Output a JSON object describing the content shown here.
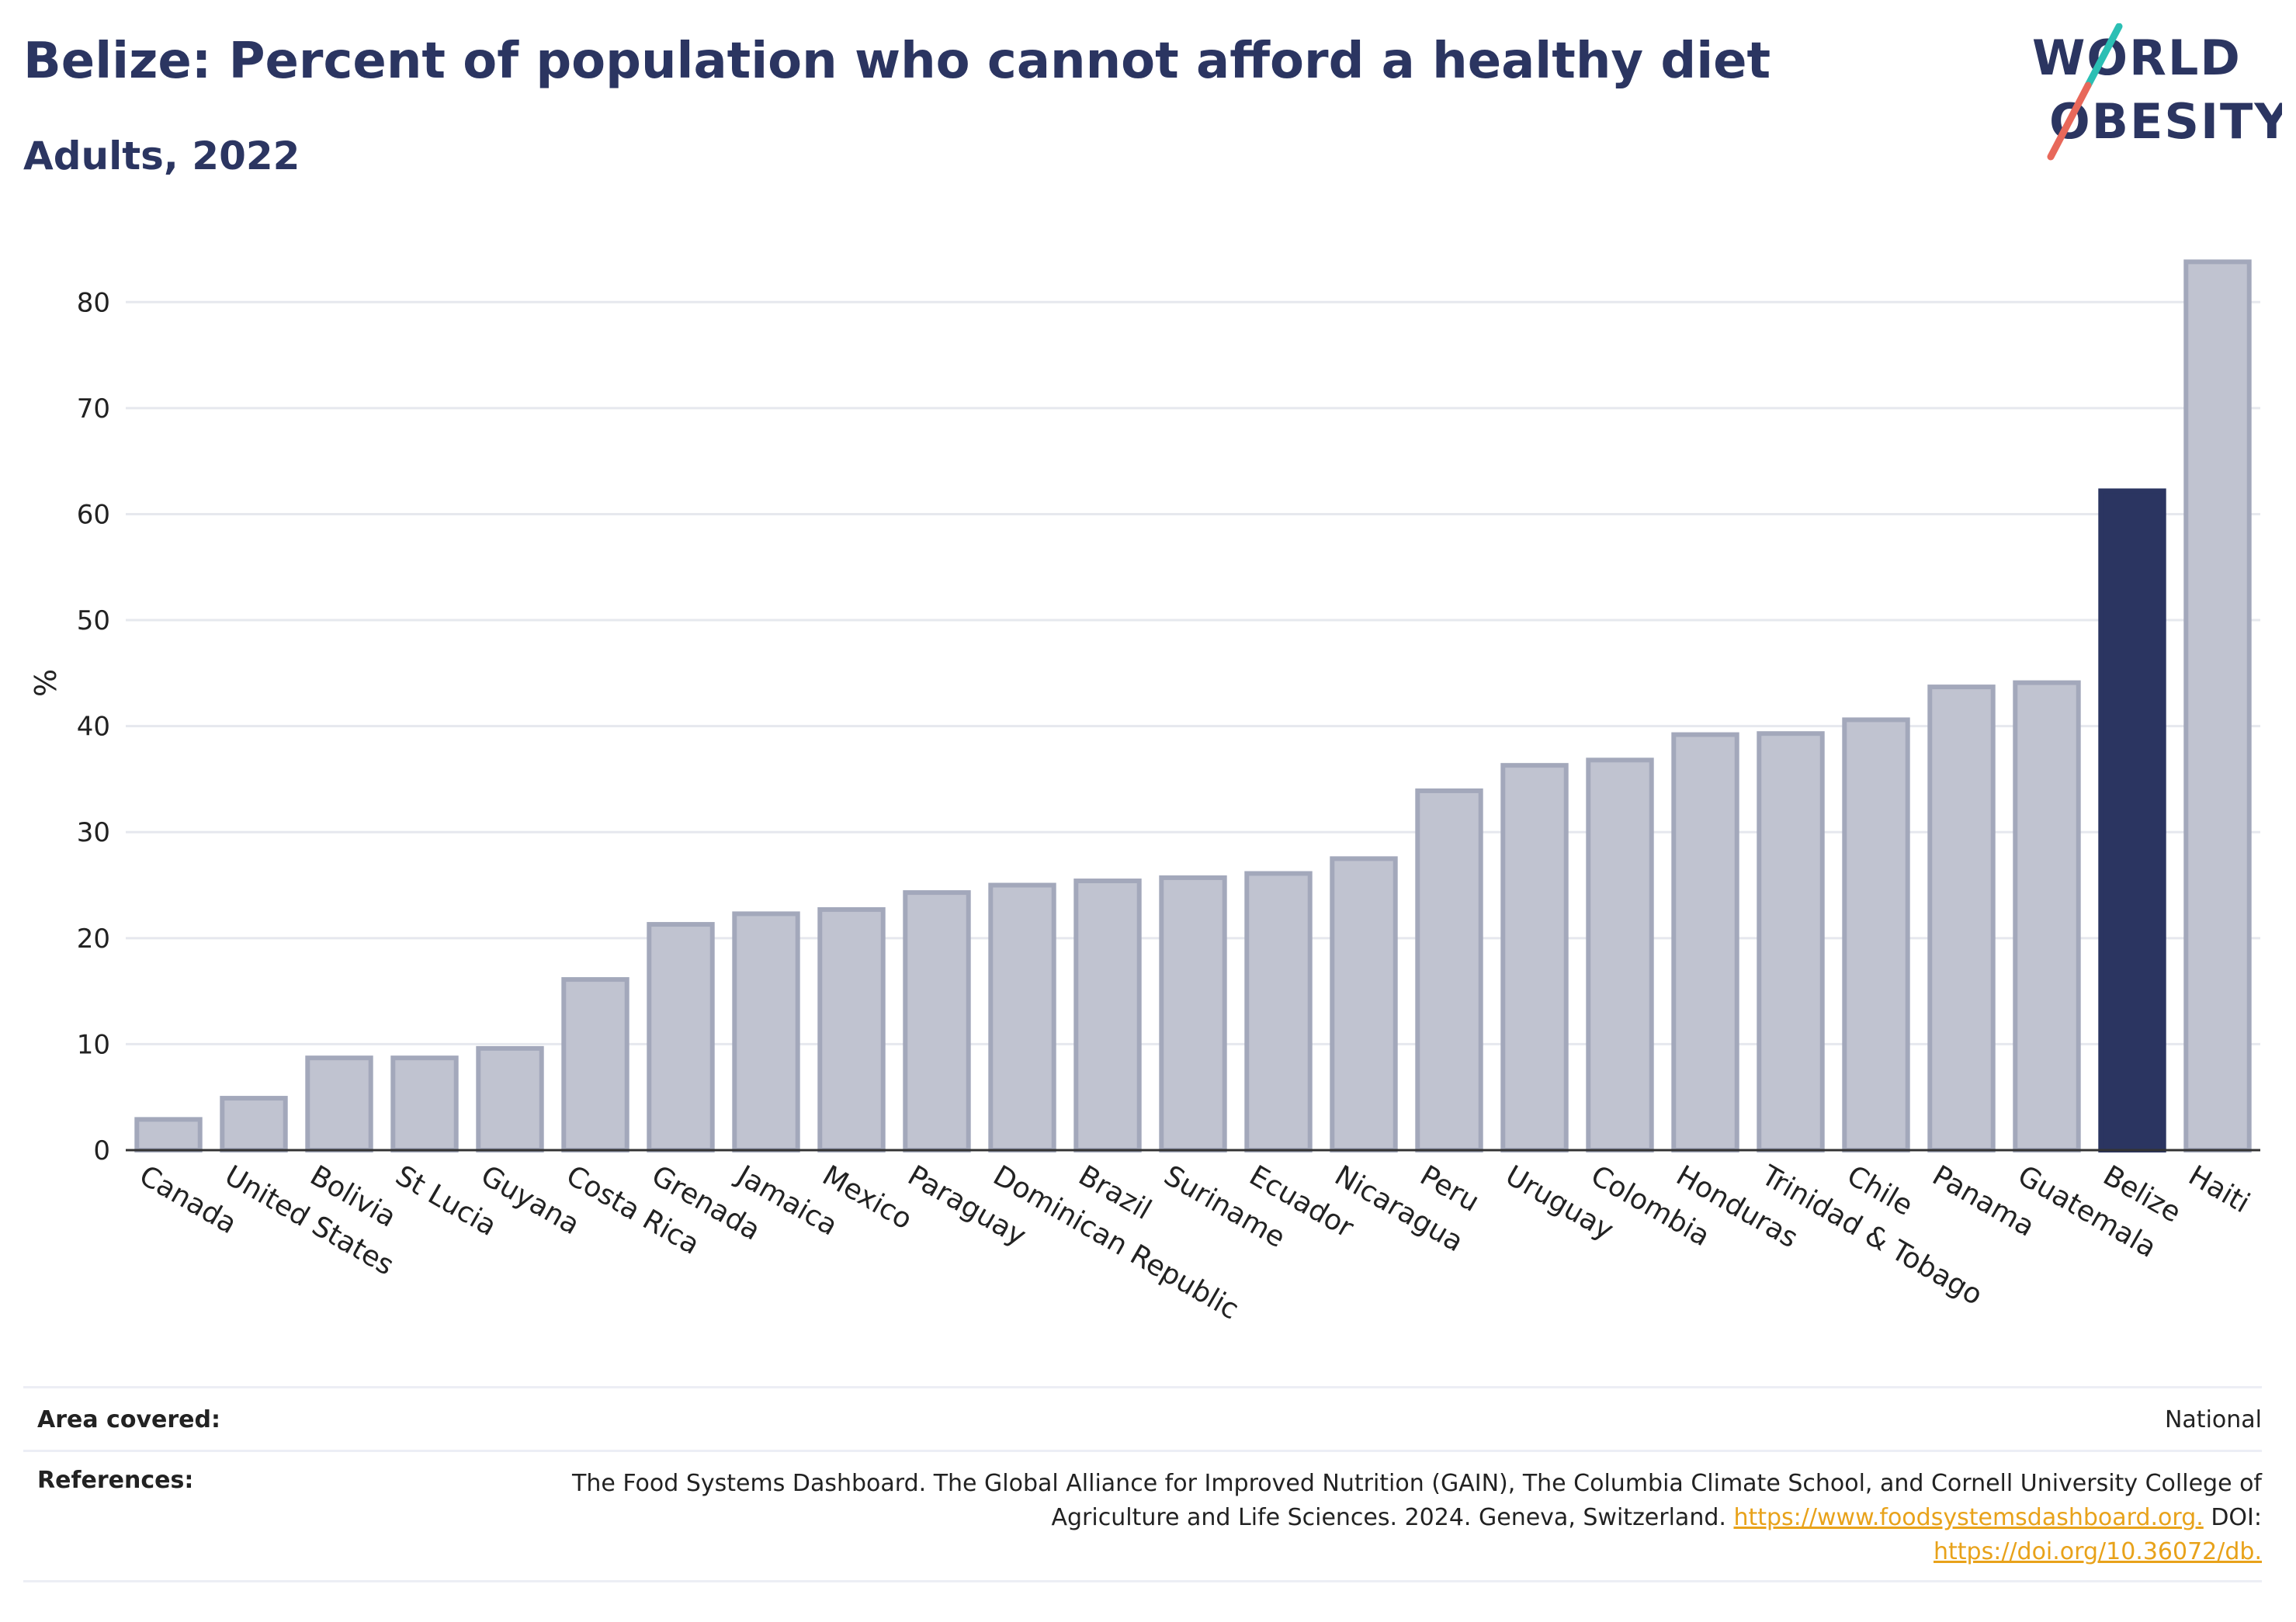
{
  "header": {
    "title": "Belize: Percent of population who cannot afford a healthy diet",
    "subtitle": "Adults, 2022"
  },
  "logo": {
    "line1": "WORLD",
    "line2": "OBESITY",
    "slash_colors": [
      "#2bbfb4",
      "#e8685a"
    ]
  },
  "colors": {
    "highlight": "#2b3561",
    "bar": "#c0c3d0",
    "bar_border": "#a3a8bb",
    "link": "#e8a21a"
  },
  "chart_data": {
    "type": "bar",
    "categories": [
      "Canada",
      "United States",
      "Bolivia",
      "St Lucia",
      "Guyana",
      "Costa Rica",
      "Grenada",
      "Jamaica",
      "Mexico",
      "Paraguay",
      "Dominican Republic",
      "Brazil",
      "Suriname",
      "Ecuador",
      "Nicaragua",
      "Peru",
      "Uruguay",
      "Colombia",
      "Honduras",
      "Trinidad & Tobago",
      "Chile",
      "Panama",
      "Guatemala",
      "Belize",
      "Haiti"
    ],
    "values": [
      2.9,
      4.9,
      8.7,
      8.7,
      9.6,
      16.1,
      21.3,
      22.3,
      22.7,
      24.3,
      25.0,
      25.4,
      25.7,
      26.1,
      27.5,
      33.9,
      36.3,
      36.8,
      39.2,
      39.3,
      40.6,
      43.7,
      44.1,
      62.2,
      83.8
    ],
    "highlight": "Belize",
    "ylabel": "%",
    "xlabel": "",
    "yticks": [
      0,
      10,
      20,
      30,
      40,
      50,
      60,
      70,
      80
    ],
    "ylim": [
      0,
      88
    ],
    "grid": true
  },
  "footer": {
    "area_label": "Area covered:",
    "area_value": "National",
    "ref_label": "References:",
    "ref_text1": "The Food Systems Dashboard. The Global Alliance for Improved Nutrition (GAIN), The Columbia Climate School, and Cornell University College of Agriculture and Life Sciences. 2024. Geneva, Switzerland.",
    "ref_link1": "https://www.foodsystemsdashboard.org.",
    "ref_text2": "DOI:",
    "ref_link2": "https://doi.org/10.36072/db."
  }
}
